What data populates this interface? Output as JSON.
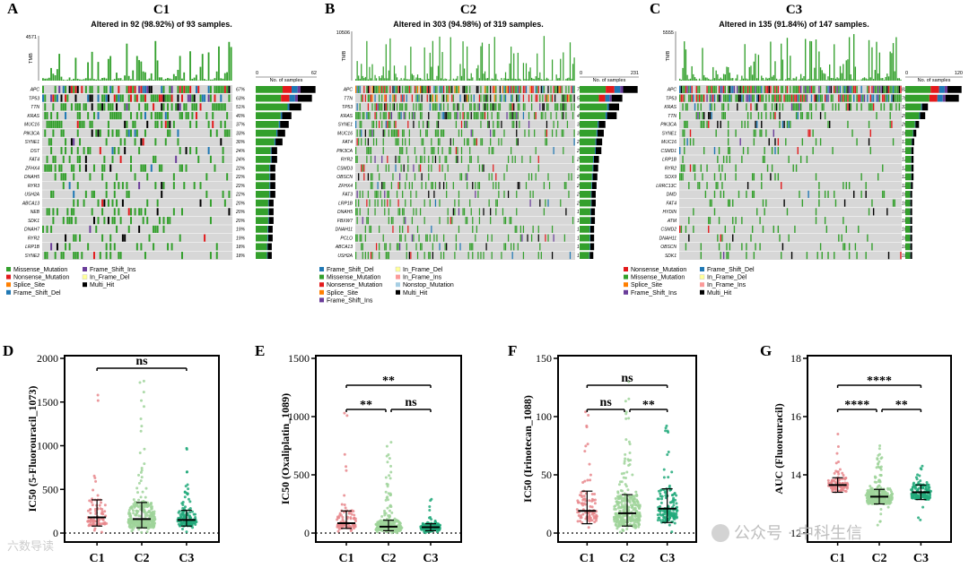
{
  "chart_data": [
    {
      "panel": "A",
      "type": "heatmap",
      "title": "C1",
      "subtitle": "Altered in 92 (98.92%) of 93 samples.",
      "tmb_label": "TMB",
      "tmb_max": "4571",
      "samples_label": "No. of samples",
      "samples_axis": [
        "0",
        "62"
      ],
      "genes": [
        "APC",
        "TP53",
        "TTN",
        "KRAS",
        "MUC16",
        "PIK3CA",
        "SYNE1",
        "DST",
        "FAT4",
        "ZFHX4",
        "DNAH5",
        "RYR3",
        "USH2A",
        "ABCA13",
        "NEB",
        "SDK1",
        "DNAH7",
        "RYR2",
        "LRP1B",
        "SYNE2"
      ],
      "pcts": [
        "67%",
        "63%",
        "51%",
        "40%",
        "37%",
        "33%",
        "30%",
        "24%",
        "24%",
        "22%",
        "22%",
        "22%",
        "22%",
        "20%",
        "20%",
        "20%",
        "19%",
        "19%",
        "18%",
        "18%"
      ],
      "legend": [
        "Missense_Mutation",
        "Nonsense_Mutation",
        "Splice_Site",
        "Frame_Shift_Del",
        "Frame_Shift_Ins",
        "In_Frame_Del",
        "Multi_Hit"
      ]
    },
    {
      "panel": "B",
      "type": "heatmap",
      "title": "C2",
      "subtitle": "Altered in 303 (94.98%) of 319 samples.",
      "tmb_label": "TMB",
      "tmb_max": "10506",
      "samples_label": "No. of samples",
      "samples_axis": [
        "0",
        "231"
      ],
      "genes": [
        "APC",
        "TTN",
        "TP53",
        "KRAS",
        "SYNE1",
        "MUC16",
        "FAT4",
        "PIK3CA",
        "RYR2",
        "CSMD3",
        "OBSCN",
        "ZFHX4",
        "FAT3",
        "LRP1B",
        "DNAH5",
        "FBXW7",
        "DNAH11",
        "PCLO",
        "ABCA13",
        "USH2A"
      ],
      "pcts": [
        "72%",
        "53%",
        "49%",
        "46%",
        "32%",
        "30%",
        "28%",
        "27%",
        "24%",
        "23%",
        "22%",
        "21%",
        "20%",
        "20%",
        "19%",
        "19%",
        "18%",
        "18%",
        "18%",
        "17%"
      ],
      "legend": [
        "Frame_Shift_Del",
        "Missense_Mutation",
        "Nonsense_Mutation",
        "Splice_Site",
        "Frame_Shift_Ins",
        "In_Frame_Del",
        "In_Frame_Ins",
        "Nonstop_Mutation",
        "Multi_Hit"
      ]
    },
    {
      "panel": "C",
      "type": "heatmap",
      "title": "C3",
      "subtitle": "Altered in 135 (91.84%) of 147 samples.",
      "tmb_label": "TMB",
      "tmb_max": "5555",
      "samples_label": "No. of samples",
      "samples_axis": [
        "0",
        "120"
      ],
      "genes": [
        "APC",
        "TP53",
        "KRAS",
        "TTN",
        "PIK3CA",
        "SYNE1",
        "MUC16",
        "CSMD1",
        "LRP1B",
        "RYR2",
        "SOX9",
        "LRRC13C",
        "DMD",
        "FAT4",
        "HYDIN",
        "ATM",
        "CSMD2",
        "DNAH11",
        "OBSCN",
        "SDK1"
      ],
      "pcts": [
        "82%",
        "78%",
        "33%",
        "29%",
        "20%",
        "16%",
        "13%",
        "12%",
        "12%",
        "12%",
        "12%",
        "11%",
        "10%",
        "10%",
        "10%",
        "10%",
        "10%",
        "10%",
        "10%",
        "10%"
      ],
      "legend": [
        "Nonsense_Mutation",
        "Missense_Mutation",
        "Splice_Site",
        "Frame_Shift_Ins",
        "Frame_Shift_Del",
        "In_Frame_Del",
        "In_Frame_Ins",
        "Multi_Hit"
      ]
    },
    {
      "panel": "D",
      "type": "scatter",
      "ylabel": "IC50 (5-Fluorouracil_1073)",
      "categories": [
        "C1",
        "C2",
        "C3"
      ],
      "ylim": [
        0,
        2000
      ],
      "yticks": [
        0,
        500,
        1000,
        1500,
        2000
      ],
      "median": [
        180,
        160,
        150
      ],
      "q1": [
        80,
        60,
        80
      ],
      "q3": [
        380,
        350,
        260
      ],
      "max": [
        1580,
        1740,
        970
      ],
      "comparisons": [
        {
          "from": "C1",
          "to": "C3",
          "label": "ns"
        }
      ]
    },
    {
      "panel": "E",
      "type": "scatter",
      "ylabel": "IC50 (Oxaliplatin_1089)",
      "categories": [
        "C1",
        "C2",
        "C3"
      ],
      "ylim": [
        0,
        1500
      ],
      "yticks": [
        0,
        500,
        1000,
        1500
      ],
      "median": [
        85,
        55,
        50
      ],
      "q1": [
        40,
        20,
        20
      ],
      "q3": [
        190,
        110,
        80
      ],
      "max": [
        1030,
        780,
        290
      ],
      "comparisons": [
        {
          "from": "C1",
          "to": "C2",
          "label": "**"
        },
        {
          "from": "C2",
          "to": "C3",
          "label": "ns"
        },
        {
          "from": "C1",
          "to": "C3",
          "label": "**"
        }
      ]
    },
    {
      "panel": "F",
      "type": "scatter",
      "ylabel": "IC50 (Irinotecan_1088)",
      "categories": [
        "C1",
        "C2",
        "C3"
      ],
      "ylim": [
        0,
        150
      ],
      "yticks": [
        0,
        50,
        100,
        150
      ],
      "median": [
        19,
        17,
        21
      ],
      "q1": [
        8,
        6,
        9
      ],
      "q3": [
        36,
        33,
        38
      ],
      "max": [
        104,
        130,
        92
      ],
      "comparisons": [
        {
          "from": "C1",
          "to": "C2",
          "label": "ns"
        },
        {
          "from": "C2",
          "to": "C3",
          "label": "**"
        },
        {
          "from": "C1",
          "to": "C3",
          "label": "ns"
        }
      ]
    },
    {
      "panel": "G",
      "type": "scatter",
      "ylabel": "AUC (Fluorouracil)",
      "categories": [
        "C1",
        "C2",
        "C3"
      ],
      "ylim": [
        12,
        18
      ],
      "yticks": [
        12,
        14,
        16,
        18
      ],
      "median": [
        13.65,
        13.25,
        13.4
      ],
      "q1": [
        13.4,
        13.0,
        13.15
      ],
      "q3": [
        13.9,
        13.5,
        13.65
      ],
      "max": [
        15.4,
        15.0,
        14.3
      ],
      "min": [
        12.4,
        12.1,
        12.4
      ],
      "comparisons": [
        {
          "from": "C1",
          "to": "C2",
          "label": "****"
        },
        {
          "from": "C2",
          "to": "C3",
          "label": "**"
        },
        {
          "from": "C1",
          "to": "C3",
          "label": "****"
        }
      ]
    }
  ],
  "watermark": {
    "left": "六数导读",
    "right": "公众号 · 中科生信"
  },
  "colors": {
    "missense": "#33a02c",
    "nonsense": "#e31a1c",
    "splice": "#ff7f00",
    "fs_del": "#1f78b4",
    "fs_ins": "#6a3d9a",
    "if_del": "#ffff99",
    "if_ins": "#fb9a99",
    "nonstop": "#a6cee3",
    "multi": "#000000",
    "bg": "#d7d7d7",
    "c1": "#e8878c",
    "c2": "#9fd39a",
    "c3": "#21a97a"
  }
}
